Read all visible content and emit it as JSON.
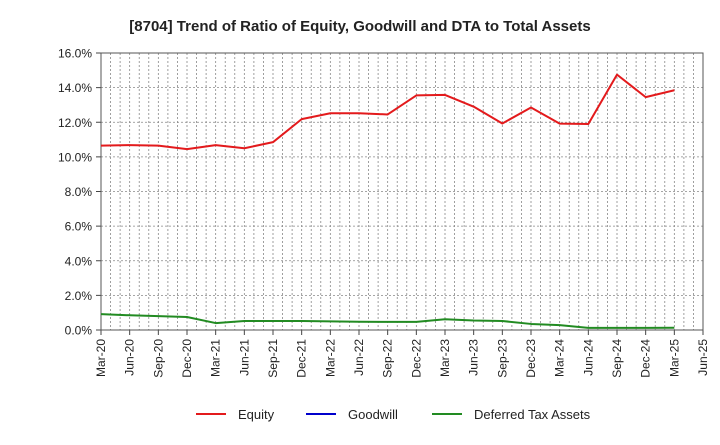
{
  "chart_data": {
    "type": "line",
    "title": "[8704]  Trend of Ratio of Equity, Goodwill and DTA to Total Assets",
    "xlabel": "",
    "ylabel": "",
    "ylim": [
      0,
      16
    ],
    "y_ticks": [
      "0.0%",
      "2.0%",
      "4.0%",
      "6.0%",
      "8.0%",
      "10.0%",
      "12.0%",
      "14.0%",
      "16.0%"
    ],
    "x_ticks": [
      "Mar-20",
      "Jun-20",
      "Sep-20",
      "Dec-20",
      "Mar-21",
      "Jun-21",
      "Sep-21",
      "Dec-21",
      "Mar-22",
      "Jun-22",
      "Sep-22",
      "Dec-22",
      "Mar-23",
      "Jun-23",
      "Sep-23",
      "Dec-23",
      "Mar-24",
      "Jun-24",
      "Sep-24",
      "Dec-24",
      "Mar-25",
      "Jun-25"
    ],
    "grid": true,
    "legend_position": "bottom",
    "series": [
      {
        "name": "Equity",
        "color": "#e31a1c",
        "values": [
          10.65,
          10.68,
          10.65,
          10.45,
          10.68,
          10.5,
          10.85,
          12.18,
          12.52,
          12.52,
          12.45,
          13.55,
          13.58,
          12.9,
          11.93,
          12.85,
          11.92,
          11.9,
          14.75,
          13.45,
          13.85
        ]
      },
      {
        "name": "Goodwill",
        "color": "#0000cc",
        "values": []
      },
      {
        "name": "Deferred Tax Assets",
        "color": "#228b22",
        "values": [
          0.92,
          0.85,
          0.8,
          0.75,
          0.4,
          0.52,
          0.52,
          0.52,
          0.5,
          0.48,
          0.47,
          0.47,
          0.62,
          0.55,
          0.52,
          0.35,
          0.28,
          0.12,
          0.12,
          0.12,
          0.13
        ]
      }
    ]
  }
}
